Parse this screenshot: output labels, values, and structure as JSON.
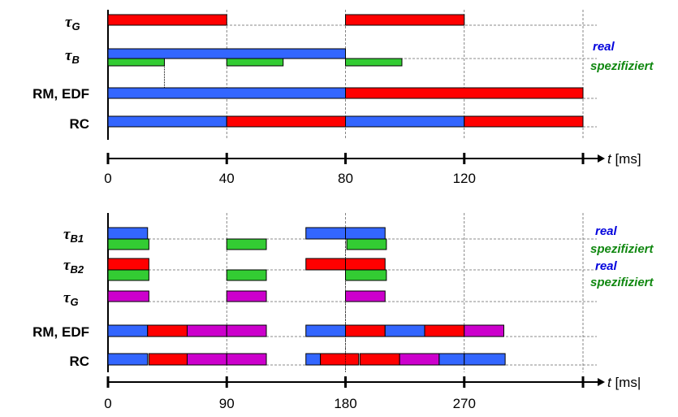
{
  "colors": {
    "blue": "#3366ff",
    "red": "#ff0000",
    "green": "#33cc33",
    "magenta": "#cc00cc"
  },
  "legend": {
    "real": "real",
    "spec": "spezifiziert",
    "real_color": "#0000dd",
    "spec_color": "#118811"
  },
  "top": {
    "axis_label_t": "t",
    "axis_label_unit": " [ms]",
    "ticks": [
      "0",
      "40",
      "80",
      "120"
    ],
    "tick_values": [
      0,
      40,
      80,
      120,
      160
    ],
    "xmax": 160,
    "rows": [
      {
        "label": "τ",
        "sub": "G",
        "bars": [
          [
            [
              0,
              40,
              "red"
            ],
            [
              80,
              120,
              "red"
            ]
          ]
        ]
      },
      {
        "label": "τ",
        "sub": "B",
        "bars": [
          [
            [
              0,
              80,
              "blue"
            ]
          ],
          [
            [
              0,
              19,
              "green"
            ],
            [
              40,
              59,
              "green"
            ],
            [
              80,
              99,
              "green"
            ]
          ]
        ]
      },
      {
        "label": "RM, EDF",
        "bars": [
          [
            [
              0,
              80,
              "blue"
            ],
            [
              80,
              160,
              "red"
            ]
          ]
        ]
      },
      {
        "label": "RC",
        "bars": [
          [
            [
              0,
              40,
              "blue"
            ],
            [
              40,
              80,
              "red"
            ],
            [
              80,
              120,
              "blue"
            ],
            [
              120,
              160,
              "red"
            ]
          ]
        ]
      }
    ]
  },
  "bottom": {
    "axis_label_t": "t",
    "axis_label_unit": " [ms|",
    "ticks": [
      "0",
      "90",
      "180",
      "270"
    ],
    "tick_values": [
      0,
      90,
      180,
      270,
      360
    ],
    "xmax": 360,
    "rows": [
      {
        "label": "τ",
        "sub": "B1",
        "bars": [
          [
            [
              0,
              30,
              "blue"
            ],
            [
              150,
              180,
              "blue"
            ],
            [
              180,
              210,
              "blue"
            ]
          ],
          [
            [
              0,
              31,
              "green"
            ],
            [
              90,
              120,
              "green"
            ],
            [
              181,
              211,
              "green"
            ]
          ]
        ]
      },
      {
        "label": "τ",
        "sub": "B2",
        "bars": [
          [
            [
              0,
              31,
              "red"
            ],
            [
              150,
              180,
              "red"
            ],
            [
              180,
              210,
              "red"
            ]
          ],
          [
            [
              0,
              31,
              "green"
            ],
            [
              90,
              120,
              "green"
            ],
            [
              180,
              211,
              "green"
            ]
          ]
        ]
      },
      {
        "label": "τ",
        "sub": "G",
        "bars": [
          [
            [
              0,
              31,
              "magenta"
            ],
            [
              90,
              120,
              "magenta"
            ],
            [
              180,
              210,
              "magenta"
            ]
          ]
        ]
      },
      {
        "label": "RM, EDF",
        "bars": [
          [
            [
              0,
              30,
              "blue"
            ],
            [
              30,
              60,
              "red"
            ],
            [
              60,
              90,
              "magenta"
            ],
            [
              90,
              120,
              "magenta"
            ],
            [
              150,
              180,
              "blue"
            ],
            [
              180,
              210,
              "red"
            ],
            [
              210,
              240,
              "blue"
            ],
            [
              240,
              270,
              "red"
            ],
            [
              270,
              300,
              "magenta"
            ]
          ]
        ]
      },
      {
        "label": "RC",
        "bars": [
          [
            [
              0,
              30,
              "blue"
            ],
            [
              31,
              60,
              "red"
            ],
            [
              60,
              90,
              "magenta"
            ],
            [
              90,
              120,
              "magenta"
            ],
            [
              150,
              161,
              "blue"
            ],
            [
              161,
              190,
              "red"
            ],
            [
              191,
              221,
              "red"
            ],
            [
              221,
              251,
              "magenta"
            ],
            [
              251,
              270,
              "blue"
            ],
            [
              270,
              301,
              "blue"
            ]
          ]
        ]
      }
    ]
  }
}
